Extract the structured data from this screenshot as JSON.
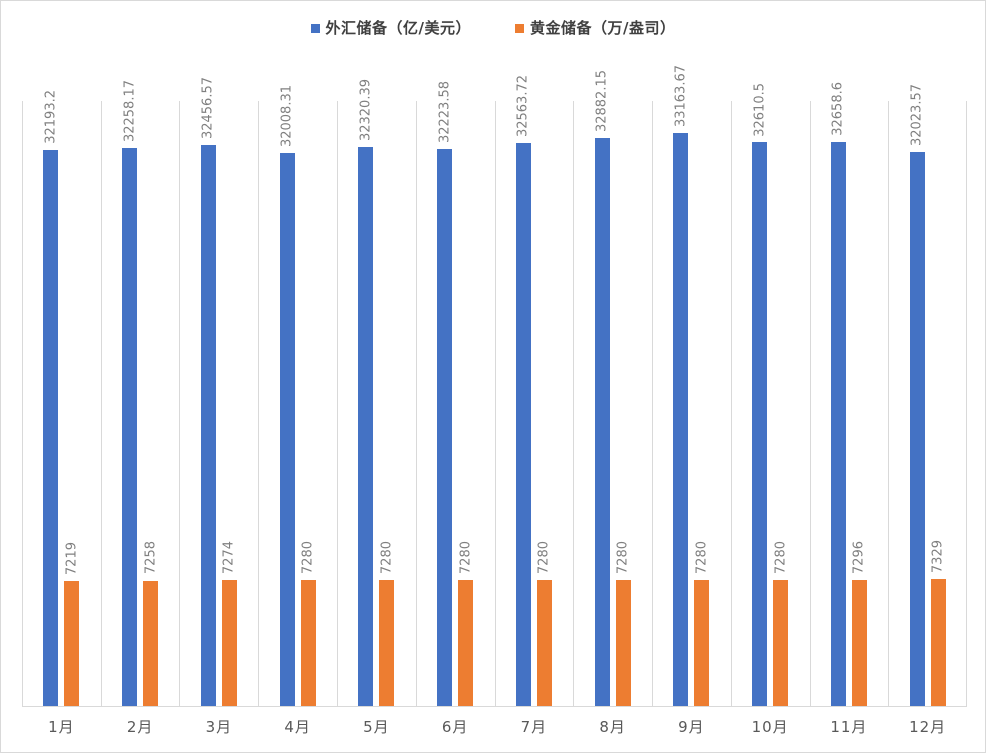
{
  "chart_data": {
    "type": "bar",
    "categories": [
      "1月",
      "2月",
      "3月",
      "4月",
      "5月",
      "6月",
      "7月",
      "8月",
      "9月",
      "10月",
      "11月",
      "12月"
    ],
    "series": [
      {
        "key": "fx-reserves",
        "name": "外汇储备（亿/美元）",
        "color": "#4472C4",
        "values": [
          32193.2,
          32258.17,
          32456.57,
          32008.31,
          32320.39,
          32223.58,
          32563.72,
          32882.15,
          33163.67,
          32610.5,
          32658.6,
          32023.57
        ]
      },
      {
        "key": "gold-reserves",
        "name": "黄金储备（万/盎司）",
        "color": "#ED7D31",
        "values": [
          7219,
          7258,
          7274,
          7280,
          7280,
          7280,
          7280,
          7280,
          7280,
          7280,
          7296,
          7329
        ]
      }
    ],
    "ylim": [
      0,
      35000
    ],
    "legend_position": "top",
    "grid": "vertical-category-lines",
    "data_labels": "rotated-90-above-bars",
    "colors": {
      "gridline": "#D9D9D9",
      "axis_line": "#D9D9D9",
      "data_label": "#7F7F7F",
      "axis_text": "#595959",
      "legend_text": "#404040",
      "border": "#D9D9D9",
      "background": "#FFFFFF"
    }
  }
}
